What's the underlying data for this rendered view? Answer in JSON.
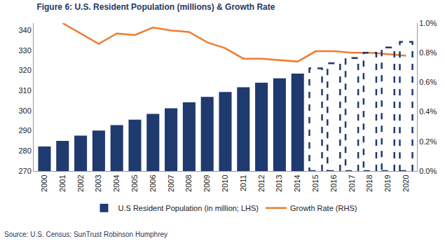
{
  "chart_data": {
    "type": "bar",
    "title": "Figure 6: U.S. Resident Population (millions) & Growth Rate",
    "annotations": [
      "Source: U.S. Census; SunTrust Robinson Humphrey"
    ],
    "categories": [
      "2000",
      "2001",
      "2002",
      "2003",
      "2004",
      "2005",
      "2006",
      "2007",
      "2008",
      "2009",
      "2010",
      "2011",
      "2012",
      "2013",
      "2014",
      "2015",
      "2016",
      "2017",
      "2018",
      "2019",
      "2020"
    ],
    "series": [
      {
        "name": "U.S Resident Population (in million; LHS)",
        "type": "bar",
        "color": "#1f3a6e",
        "values": [
          282.2,
          285.0,
          287.6,
          290.1,
          292.8,
          295.5,
          298.4,
          301.2,
          304.1,
          306.8,
          309.3,
          311.6,
          313.9,
          316.1,
          318.4,
          null,
          null,
          null,
          null,
          null,
          null
        ]
      },
      {
        "type": "bar",
        "color": "#1f3a6e",
        "line_style": "dashed",
        "values": [
          null,
          null,
          null,
          null,
          null,
          null,
          null,
          null,
          null,
          null,
          null,
          null,
          null,
          null,
          null,
          321.0,
          323.6,
          326.2,
          328.8,
          331.4,
          334.2
        ]
      },
      {
        "name": "Growth Rate (RHS)",
        "type": "line",
        "axis": "y2",
        "color": "#ed7d31",
        "values": [
          null,
          1.0,
          0.93,
          0.86,
          0.93,
          0.92,
          0.97,
          0.95,
          0.94,
          0.87,
          0.83,
          0.76,
          0.76,
          0.75,
          0.74,
          0.81,
          0.81,
          0.8,
          0.8,
          0.79,
          0.78
        ]
      }
    ],
    "ylim": [
      270,
      343.5
    ],
    "yticks": [
      270,
      280,
      290,
      300,
      310,
      320,
      330,
      340
    ],
    "y2lim": [
      0,
      1.0
    ],
    "y2ticks": [
      {
        "value": 0,
        "label": "0.0%"
      },
      {
        "value": 0.2,
        "label": "0.2%"
      },
      {
        "value": 0.4,
        "label": "0.4%"
      },
      {
        "value": 0.6,
        "label": "0.6%"
      },
      {
        "value": 0.8,
        "label": "0.8%"
      },
      {
        "value": 1.0,
        "label": "1.0%"
      }
    ],
    "grid": false,
    "legend": "bottom"
  }
}
